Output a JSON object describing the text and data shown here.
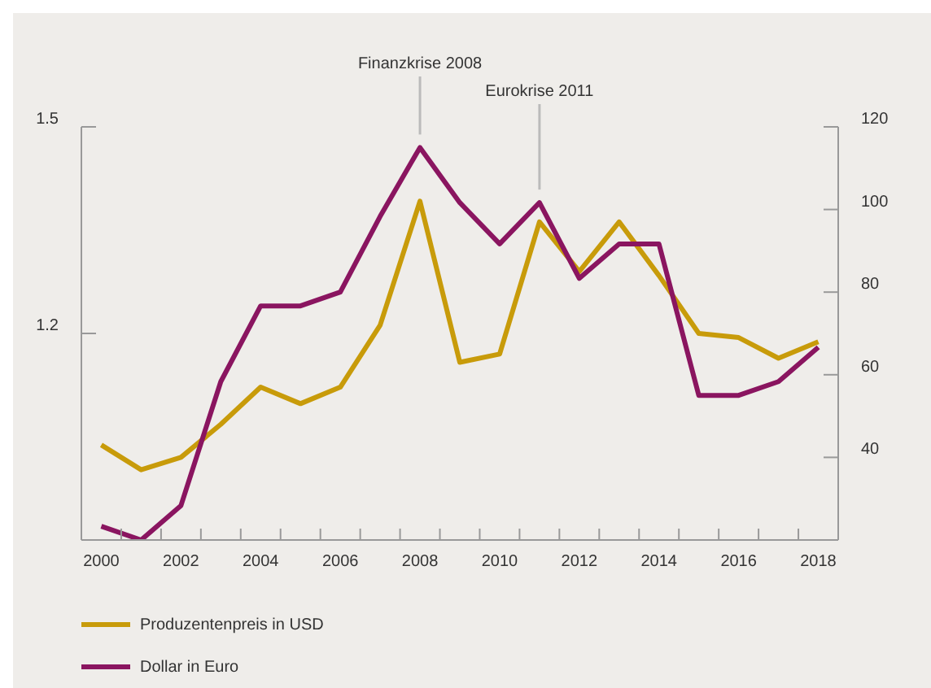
{
  "chart_data": {
    "type": "line",
    "x": [
      2000,
      2001,
      2002,
      2003,
      2004,
      2005,
      2006,
      2007,
      2008,
      2009,
      2010,
      2011,
      2012,
      2013,
      2014,
      2015,
      2016,
      2017,
      2018
    ],
    "series": [
      {
        "name": "Produzentenpreis in USD",
        "color": "#c89b0a",
        "axis": "y2",
        "values": [
          43,
          37,
          40,
          48,
          57,
          53,
          57,
          72,
          102,
          63,
          65,
          97,
          85,
          97,
          84,
          70,
          69,
          64,
          68
        ]
      },
      {
        "name": "Dollar in Euro",
        "color": "#8a1560",
        "values": [
          0.92,
          0.9,
          0.95,
          1.13,
          1.24,
          1.24,
          1.26,
          1.37,
          1.47,
          1.39,
          1.33,
          1.39,
          1.28,
          1.33,
          1.33,
          1.11,
          1.11,
          1.13,
          1.18
        ]
      }
    ],
    "xlim": [
      1999.5,
      2018.5
    ],
    "xticks": [
      2000,
      2002,
      2004,
      2006,
      2008,
      2010,
      2012,
      2014,
      2016,
      2018,
      {
        "value": 2000.5,
        "label": null
      },
      {
        "value": 2001.5,
        "label": null
      },
      {
        "value": 2002.5,
        "label": null
      },
      {
        "value": 2003.5,
        "label": null
      },
      {
        "value": 2004.5,
        "label": null
      },
      {
        "value": 2005.5,
        "label": null
      },
      {
        "value": 2006.5,
        "label": null
      },
      {
        "value": 2007.5,
        "label": null
      },
      {
        "value": 2008.5,
        "label": null
      },
      {
        "value": 2009.5,
        "label": null
      },
      {
        "value": 2010.5,
        "label": null
      },
      {
        "value": 2011.5,
        "label": null
      },
      {
        "value": 2012.5,
        "label": null
      },
      {
        "value": 2013.5,
        "label": null
      },
      {
        "value": 2014.5,
        "label": null
      },
      {
        "value": 2015.5,
        "label": null
      },
      {
        "value": 2016.5,
        "label": null
      },
      {
        "value": 2017.5,
        "label": null
      }
    ],
    "ylim": [
      0.9,
      1.5
    ],
    "yticks": [
      1.2,
      1.5
    ],
    "y2lim": [
      20,
      120
    ],
    "y2ticks": [
      40,
      60,
      80,
      100,
      120
    ],
    "annotations": [
      {
        "text": "Finanzkrise 2008",
        "x": 2008,
        "y": 1.47
      },
      {
        "text": "Eurokrise 2011",
        "x": 2011,
        "y": 1.39
      }
    ],
    "grid": false,
    "legend": "bottom",
    "marker": "none",
    "line_style": "solid"
  }
}
